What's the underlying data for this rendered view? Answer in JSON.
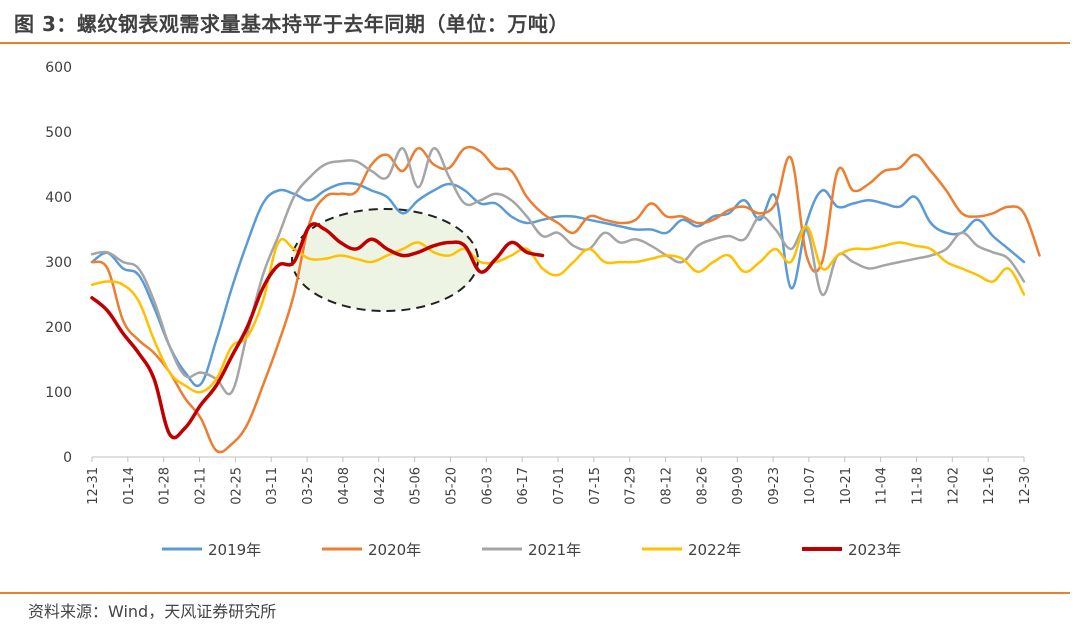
{
  "header": {
    "title": "图 3：螺纹钢表观需求量基本持平于去年同期（单位：万吨）"
  },
  "footer": {
    "source": "资料来源：Wind，天风证券研究所"
  },
  "chart_data": {
    "type": "line",
    "title": "图 3：螺纹钢表观需求量基本持平于去年同期（单位：万吨）",
    "xlabel": "",
    "ylabel": "",
    "ylim": [
      0,
      600
    ],
    "yticks": [
      0,
      100,
      200,
      300,
      400,
      500,
      600
    ],
    "grid": false,
    "legend_position": "bottom",
    "x_ticks": [
      "12-31",
      "01-14",
      "01-28",
      "02-11",
      "02-25",
      "03-11",
      "03-25",
      "04-08",
      "04-22",
      "05-06",
      "05-20",
      "06-03",
      "06-17",
      "07-01",
      "07-15",
      "07-29",
      "08-12",
      "08-26",
      "09-09",
      "09-23",
      "10-07",
      "10-21",
      "11-04",
      "11-18",
      "12-02",
      "12-16",
      "12-30"
    ],
    "annotation": {
      "type": "ellipse",
      "description": "dashed ellipse highlighting 2023 vs prior years, Mar–May"
    },
    "series": [
      {
        "name": "2019年",
        "color": "#5B9BD5",
        "values": [
          300,
          314,
          290,
          280,
          230,
          170,
          130,
          112,
          180,
          260,
          330,
          390,
          410,
          405,
          395,
          410,
          420,
          420,
          410,
          400,
          375,
          395,
          410,
          420,
          410,
          390,
          390,
          370,
          360,
          365,
          370,
          370,
          365,
          360,
          355,
          350,
          350,
          345,
          365,
          355,
          370,
          375,
          395,
          365,
          400,
          260,
          360,
          410,
          385,
          390,
          395,
          390,
          385,
          400,
          360,
          345,
          345,
          365,
          340,
          320,
          300
        ]
      },
      {
        "name": "2020年",
        "color": "#ED7D31",
        "values": [
          300,
          290,
          210,
          180,
          160,
          130,
          90,
          60,
          10,
          20,
          50,
          110,
          175,
          250,
          360,
          400,
          405,
          408,
          450,
          465,
          440,
          475,
          450,
          445,
          475,
          470,
          445,
          440,
          400,
          375,
          360,
          345,
          370,
          365,
          360,
          365,
          390,
          370,
          370,
          360,
          365,
          380,
          385,
          375,
          390,
          460,
          310,
          300,
          440,
          410,
          420,
          440,
          445,
          465,
          440,
          410,
          375,
          370,
          375,
          385,
          375,
          310
        ]
      },
      {
        "name": "2021年",
        "color": "#A5A5A5",
        "values": [
          312,
          315,
          300,
          290,
          240,
          170,
          125,
          130,
          120,
          100,
          190,
          280,
          340,
          400,
          430,
          450,
          455,
          455,
          440,
          430,
          475,
          415,
          475,
          430,
          390,
          395,
          405,
          395,
          370,
          340,
          345,
          325,
          320,
          345,
          330,
          335,
          325,
          310,
          300,
          325,
          335,
          340,
          335,
          370,
          350,
          320,
          350,
          250,
          310,
          300,
          290,
          295,
          300,
          305,
          310,
          320,
          345,
          325,
          315,
          305,
          270
        ]
      },
      {
        "name": "2022年",
        "color": "#FFC000",
        "values": [
          265,
          270,
          265,
          240,
          180,
          130,
          110,
          100,
          120,
          170,
          185,
          240,
          330,
          320,
          305,
          305,
          310,
          305,
          300,
          310,
          320,
          330,
          315,
          310,
          320,
          300,
          300,
          310,
          320,
          290,
          280,
          300,
          320,
          300,
          300,
          300,
          305,
          310,
          305,
          285,
          300,
          310,
          285,
          300,
          320,
          300,
          355,
          290,
          310,
          320,
          320,
          325,
          330,
          325,
          320,
          300,
          290,
          280,
          270,
          290,
          250
        ]
      },
      {
        "name": "2023年",
        "color": "#C00000",
        "values": [
          245,
          225,
          190,
          160,
          120,
          35,
          45,
          80,
          110,
          155,
          200,
          260,
          295,
          300,
          355,
          350,
          330,
          320,
          335,
          320,
          310,
          315,
          325,
          330,
          325,
          285,
          305,
          330,
          315,
          310
        ]
      }
    ]
  }
}
